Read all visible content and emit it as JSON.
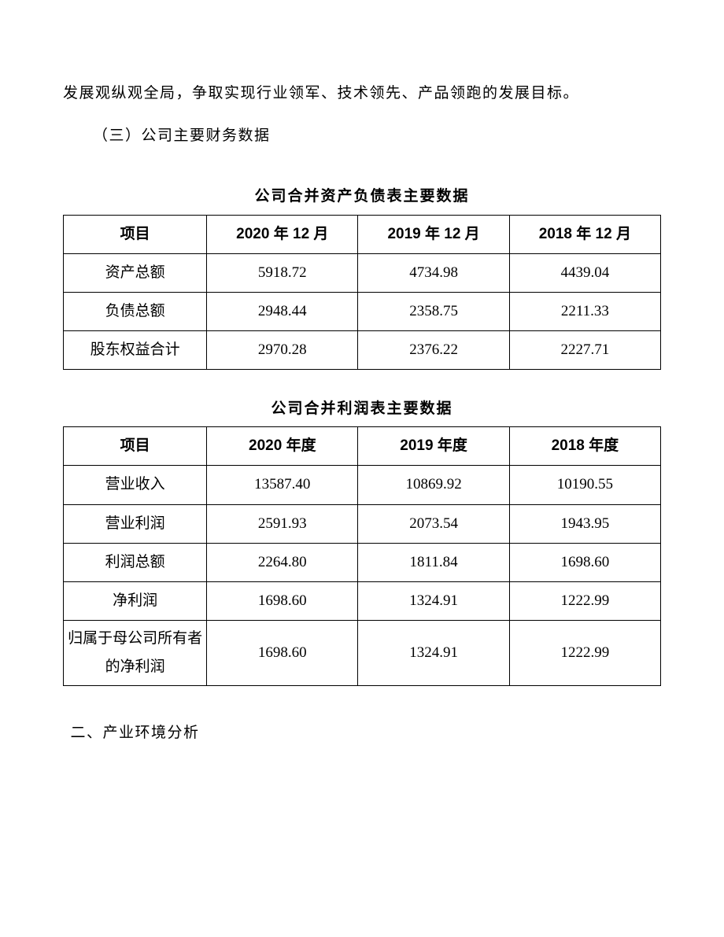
{
  "body_text": {
    "para1": "发展观纵观全局，争取实现行业领军、技术领先、产品领跑的发展目标。",
    "section_heading": "（三）公司主要财务数据",
    "section_two": "二、产业环境分析"
  },
  "table1": {
    "title": "公司合并资产负债表主要数据",
    "type": "table",
    "background_color": "#ffffff",
    "border_color": "#000000",
    "header_fontweight": "bold",
    "columns": [
      "项目",
      "2020 年 12 月",
      "2019 年 12 月",
      "2018 年 12 月"
    ],
    "rows": [
      {
        "label": "资产总额",
        "v2020": "5918.72",
        "v2019": "4734.98",
        "v2018": "4439.04"
      },
      {
        "label": "负债总额",
        "v2020": "2948.44",
        "v2019": "2358.75",
        "v2018": "2211.33"
      },
      {
        "label": "股东权益合计",
        "v2020": "2970.28",
        "v2019": "2376.22",
        "v2018": "2227.71"
      }
    ]
  },
  "table2": {
    "title": "公司合并利润表主要数据",
    "type": "table",
    "background_color": "#ffffff",
    "border_color": "#000000",
    "header_fontweight": "bold",
    "columns": [
      "项目",
      "2020 年度",
      "2019 年度",
      "2018 年度"
    ],
    "rows": [
      {
        "label": "营业收入",
        "v2020": "13587.40",
        "v2019": "10869.92",
        "v2018": "10190.55"
      },
      {
        "label": "营业利润",
        "v2020": "2591.93",
        "v2019": "2073.54",
        "v2018": "1943.95"
      },
      {
        "label": "利润总额",
        "v2020": "2264.80",
        "v2019": "1811.84",
        "v2018": "1698.60"
      },
      {
        "label": "净利润",
        "v2020": "1698.60",
        "v2019": "1324.91",
        "v2018": "1222.99"
      },
      {
        "label": "归属于母公司所有者的净利润",
        "v2020": "1698.60",
        "v2019": "1324.91",
        "v2018": "1222.99"
      }
    ]
  }
}
